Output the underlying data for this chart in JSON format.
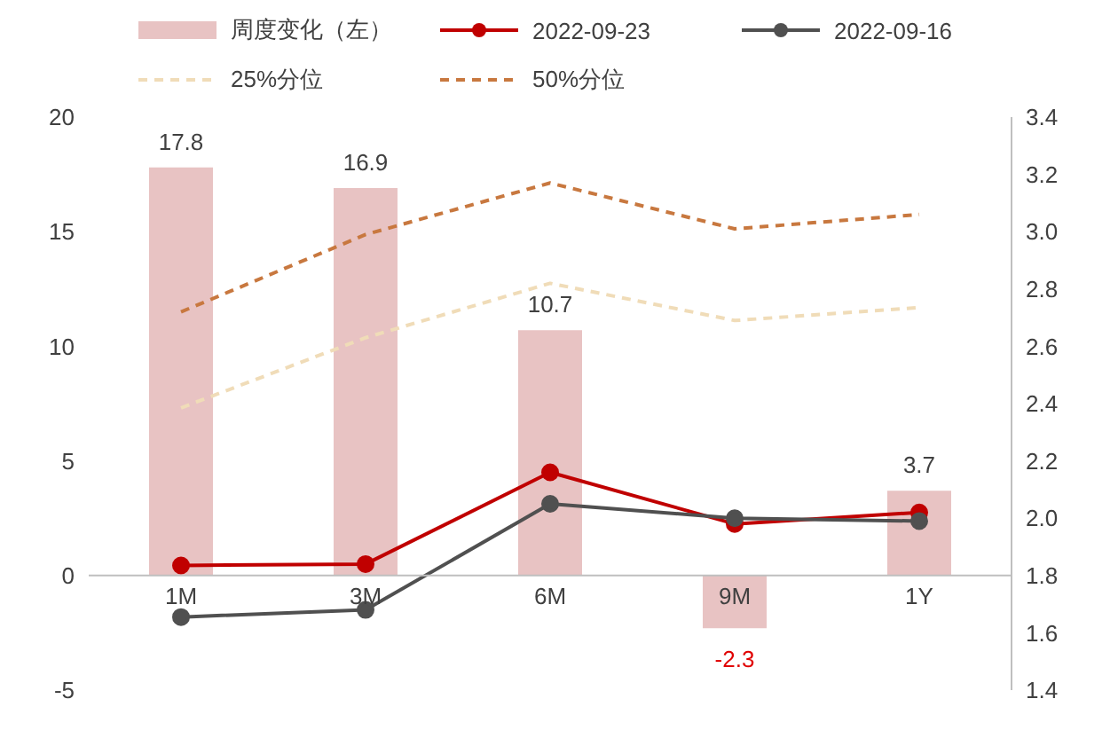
{
  "chart_data": {
    "type": "bar",
    "categories": [
      "1M",
      "3M",
      "6M",
      "9M",
      "1Y"
    ],
    "series": [
      {
        "name": "周度变化（左）",
        "color": "#e8c3c3",
        "values": [
          17.8,
          16.9,
          10.7,
          -2.3,
          3.7
        ],
        "value_labels": [
          "17.8",
          "16.9",
          "10.7",
          "-2.3",
          "3.7"
        ]
      },
      {
        "name": "2022-09-23",
        "type": "line",
        "axis": "y2",
        "color": "#c00000",
        "marker": "circle",
        "line_style": "solid",
        "values": [
          1.835,
          1.84,
          2.16,
          1.98,
          2.02
        ]
      },
      {
        "name": "2022-09-16",
        "type": "line",
        "axis": "y2",
        "color": "#505050",
        "marker": "circle",
        "line_style": "solid",
        "values": [
          1.655,
          1.68,
          2.05,
          2.0,
          1.99
        ]
      },
      {
        "name": "25%分位",
        "type": "line",
        "axis": "y2",
        "color": "#f0dcb8",
        "marker": "none",
        "line_style": "dashed",
        "values": [
          2.385,
          2.63,
          2.82,
          2.69,
          2.735
        ]
      },
      {
        "name": "50%分位",
        "type": "line",
        "axis": "y2",
        "color": "#c8783f",
        "marker": "none",
        "line_style": "dashed",
        "values": [
          2.72,
          2.99,
          3.17,
          3.01,
          3.06
        ]
      }
    ],
    "ylim": [
      -5,
      20
    ],
    "yticks": [
      -5,
      0,
      5,
      10,
      15,
      20
    ],
    "y2lim": [
      1.4,
      3.4
    ],
    "y2ticks": [
      {
        "value": 1.4,
        "label": "1.4"
      },
      {
        "value": 1.6,
        "label": "1.6"
      },
      {
        "value": 1.8,
        "label": "1.8"
      },
      {
        "value": 2.0,
        "label": "2.0"
      },
      {
        "value": 2.2,
        "label": "2.2"
      },
      {
        "value": 2.4,
        "label": "2.4"
      },
      {
        "value": 2.6,
        "label": "2.6"
      },
      {
        "value": 2.8,
        "label": "2.8"
      },
      {
        "value": 3.0,
        "label": "3.0"
      },
      {
        "value": 3.2,
        "label": "3.2"
      },
      {
        "value": 3.4,
        "label": "3.4"
      }
    ],
    "legend": "top"
  }
}
